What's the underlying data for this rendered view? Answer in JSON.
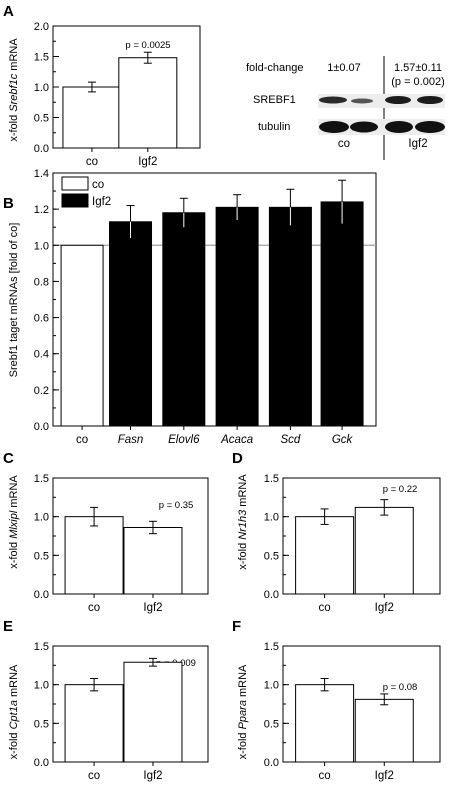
{
  "panels": {
    "A": {
      "letter": "A",
      "ylabel_pre": "x-fold ",
      "ylabel_gene": "Srebf1c",
      "ylabel_post": " mRNA",
      "pvalue": "p = 0.0025",
      "blot": {
        "foldchange_label": "fold-change",
        "co_value": "1±0.07",
        "igf2_value": "1.57±0.11",
        "igf2_p": "(p = 0.002)",
        "row1": "SREBF1",
        "row2": "tubulin",
        "co_label": "co",
        "igf2_label": "Igf2"
      }
    },
    "B": {
      "letter": "B",
      "ylabel": "Srebf1 taget mRNAs [fold of co]",
      "legend": [
        "co",
        "Igf2"
      ]
    },
    "C": {
      "letter": "C",
      "ylabel_pre": "x-fold ",
      "ylabel_gene": "Mlxipl",
      "ylabel_post": " mRNA",
      "pvalue": "p = 0.35"
    },
    "D": {
      "letter": "D",
      "ylabel_pre": "x-fold ",
      "ylabel_gene": "Nr1h3",
      "ylabel_post": " mRNA",
      "pvalue": "p = 0.22"
    },
    "E": {
      "letter": "E",
      "ylabel_pre": "x-fold ",
      "ylabel_gene": "Cpt1a",
      "ylabel_post": " mRNA",
      "pvalue": "p = 0.009"
    },
    "F": {
      "letter": "F",
      "ylabel_pre": "x-fold ",
      "ylabel_gene": "Ppara",
      "ylabel_post": " mRNA",
      "pvalue": "p = 0.08"
    }
  },
  "chart_data": [
    {
      "panel": "A",
      "type": "bar",
      "categories": [
        "co",
        "Igf2"
      ],
      "values": [
        1.0,
        1.48
      ],
      "errors": [
        0.08,
        0.09
      ],
      "ylim": [
        0,
        2.0
      ],
      "yticks": [
        0.0,
        0.5,
        1.0,
        1.5,
        2.0
      ],
      "ytick_labels": [
        "0.0",
        "0.5",
        "1.0",
        "1.5",
        "2.0"
      ],
      "fill": [
        "#ffffff",
        "#ffffff"
      ]
    },
    {
      "panel": "B",
      "type": "bar",
      "categories": [
        "co",
        "Fasn",
        "Elovl6",
        "Acaca",
        "Scd",
        "Gck"
      ],
      "values": [
        1.0,
        1.13,
        1.18,
        1.21,
        1.21,
        1.24
      ],
      "errors": [
        0,
        0.09,
        0.08,
        0.07,
        0.1,
        0.12
      ],
      "ylim": [
        0,
        1.4
      ],
      "yticks": [
        0.0,
        0.2,
        0.4,
        0.6,
        0.8,
        1.0,
        1.2,
        1.4
      ],
      "ytick_labels": [
        "0.0",
        "0.2",
        "0.4",
        "0.6",
        "0.8",
        "1.0",
        "1.2",
        "1.4"
      ],
      "reference_line": 1.0,
      "italic_categories": [
        false,
        true,
        true,
        true,
        true,
        true
      ],
      "fill": [
        "#ffffff",
        "#000000",
        "#000000",
        "#000000",
        "#000000",
        "#000000"
      ]
    },
    {
      "panel": "C",
      "type": "bar",
      "categories": [
        "co",
        "Igf2"
      ],
      "values": [
        1.0,
        0.86
      ],
      "errors": [
        0.12,
        0.08
      ],
      "ylim": [
        0,
        1.5
      ],
      "yticks": [
        0.0,
        0.5,
        1.0,
        1.5
      ],
      "ytick_labels": [
        "0.0",
        "0.5",
        "1.0",
        "1.5"
      ],
      "fill": [
        "#ffffff",
        "#ffffff"
      ]
    },
    {
      "panel": "D",
      "type": "bar",
      "categories": [
        "co",
        "Igf2"
      ],
      "values": [
        1.0,
        1.12
      ],
      "errors": [
        0.1,
        0.1
      ],
      "ylim": [
        0,
        1.5
      ],
      "yticks": [
        0.0,
        0.5,
        1.0,
        1.5
      ],
      "ytick_labels": [
        "0.0",
        "0.5",
        "1.0",
        "1.5"
      ],
      "fill": [
        "#ffffff",
        "#ffffff"
      ]
    },
    {
      "panel": "E",
      "type": "bar",
      "categories": [
        "co",
        "Igf2"
      ],
      "values": [
        1.0,
        1.29
      ],
      "errors": [
        0.08,
        0.05
      ],
      "ylim": [
        0,
        1.5
      ],
      "yticks": [
        0.0,
        0.5,
        1.0,
        1.5
      ],
      "ytick_labels": [
        "0.0",
        "0.5",
        "1.0",
        "1.5"
      ],
      "fill": [
        "#ffffff",
        "#ffffff"
      ]
    },
    {
      "panel": "F",
      "type": "bar",
      "categories": [
        "co",
        "Igf2"
      ],
      "values": [
        1.0,
        0.81
      ],
      "errors": [
        0.08,
        0.07
      ],
      "ylim": [
        0,
        1.5
      ],
      "yticks": [
        0.0,
        0.5,
        1.0,
        1.5
      ],
      "ytick_labels": [
        "0.0",
        "0.5",
        "1.0",
        "1.5"
      ],
      "fill": [
        "#ffffff",
        "#ffffff"
      ]
    }
  ]
}
